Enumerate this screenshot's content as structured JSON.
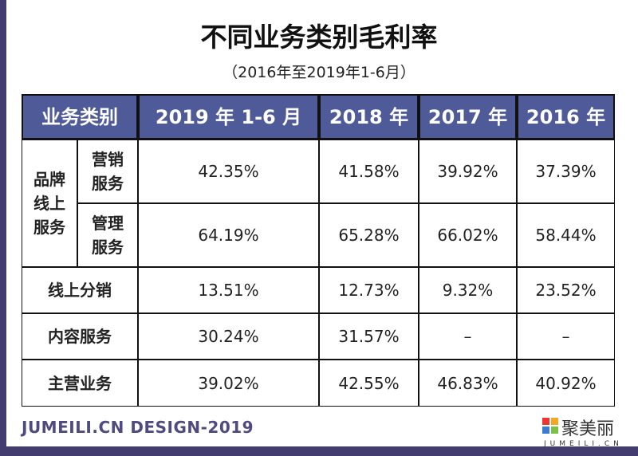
{
  "title": "不同业务类别毛利率",
  "subtitle": "（2016年至2019年1-6月）",
  "footer": "JUMEILI.CN DESIGN-2019",
  "logo": {
    "name": "聚美丽",
    "url_text": "JUMEILI.CN"
  },
  "colors": {
    "header": "#4f5b98",
    "frame": "#433c6e"
  },
  "chart_data": {
    "type": "table",
    "columns": [
      "业务类别",
      "2019 年 1-6 月",
      "2018 年",
      "2017 年",
      "2016 年"
    ],
    "group": "品牌线上服务",
    "rows": [
      {
        "label": "营销服务",
        "values": [
          "42.35%",
          "41.58%",
          "39.92%",
          "37.39%"
        ]
      },
      {
        "label": "管理服务",
        "values": [
          "64.19%",
          "65.28%",
          "66.02%",
          "58.44%"
        ]
      },
      {
        "label": "线上分销",
        "values": [
          "13.51%",
          "12.73%",
          "9.32%",
          "23.52%"
        ]
      },
      {
        "label": "内容服务",
        "values": [
          "30.24%",
          "31.57%",
          "–",
          "–"
        ]
      },
      {
        "label": "主营业务",
        "values": [
          "39.02%",
          "42.55%",
          "46.83%",
          "40.92%"
        ]
      }
    ]
  }
}
